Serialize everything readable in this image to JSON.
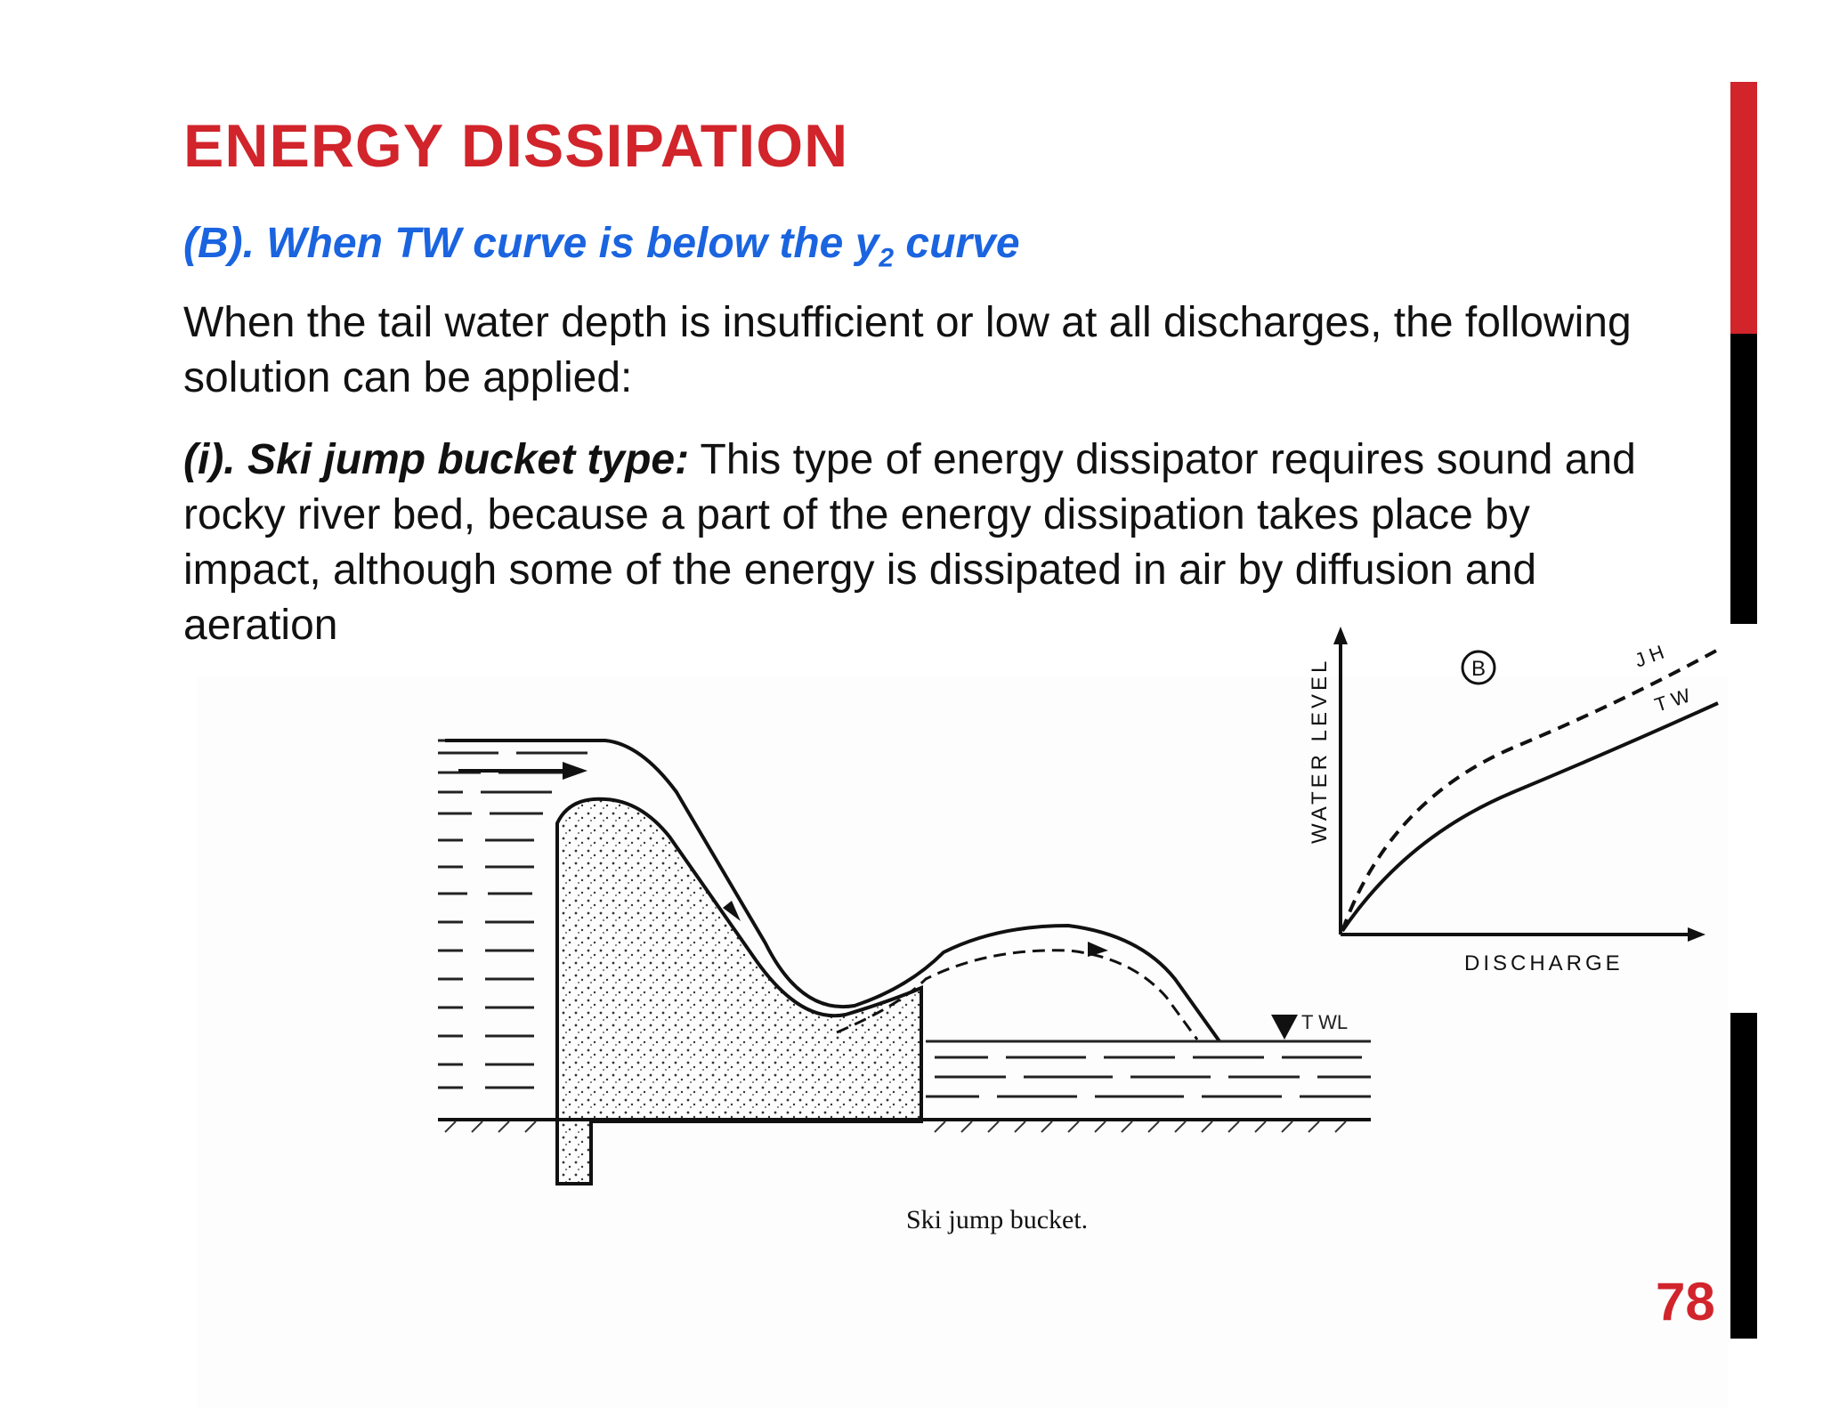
{
  "slide": {
    "title": "ENERGY DISSIPATION",
    "subtitle_main": "(B). When TW curve is  below the y",
    "subtitle_sub": "2",
    "subtitle_end": " curve",
    "paragraph1": "When the tail water depth is insufficient or low at all discharges, the following solution can be applied:",
    "paragraph2_lead": "(i). Ski jump bucket type:",
    "paragraph2_rest": " This type of energy dissipator requires sound and rocky river bed, because a part of the energy dissipation takes place by impact, although some of the energy is dissipated in air by diffusion and aeration",
    "page_number": "78"
  },
  "figure": {
    "caption": "Ski jump bucket.",
    "twl_label": "T WL"
  },
  "graph": {
    "ylabel": "WATER  LEVEL",
    "xlabel": "DISCHARGE",
    "case_label": "B",
    "curve_jh": "JH",
    "curve_tw": "TW"
  },
  "colors": {
    "accent_red": "#d1242b",
    "subtitle_blue": "#1a64e0"
  }
}
